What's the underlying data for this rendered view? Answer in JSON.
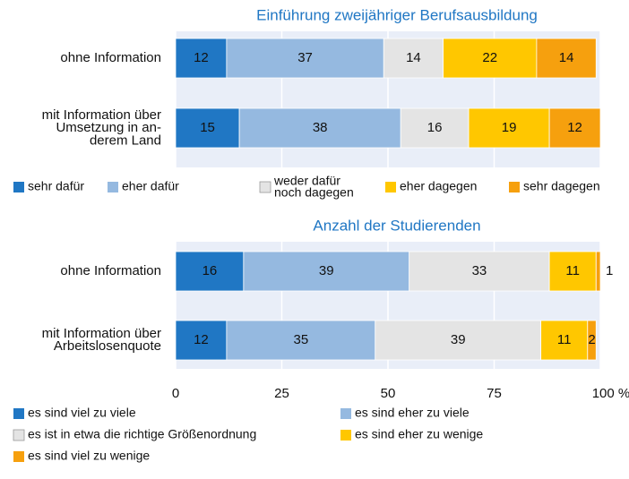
{
  "chart_data": [
    {
      "type": "bar",
      "orientation": "horizontal",
      "stacked": true,
      "title": "Einführung zweijähriger Berufsausbildung",
      "categories": [
        "ohne Information",
        "mit Information über\nUmsetzung in an-\nderem Land"
      ],
      "xlim": [
        0,
        100
      ],
      "series": [
        {
          "name": "sehr dafür",
          "color": "#2077c4",
          "label_color": "#ffffff",
          "values": [
            12,
            15
          ]
        },
        {
          "name": "eher dafür",
          "color": "#95b9e0",
          "label_color": "#2a78c6",
          "values": [
            37,
            38
          ]
        },
        {
          "name": "weder dafür\nnoch dagegen",
          "color": "#e4e4e4",
          "label_color": "#6a6a6a",
          "values": [
            14,
            16
          ]
        },
        {
          "name": "eher dagegen",
          "color": "#ffc700",
          "label_color": "#f29a00",
          "values": [
            22,
            19
          ]
        },
        {
          "name": "sehr dagegen",
          "color": "#f6a00e",
          "label_color": "#b8201a",
          "values": [
            14,
            12
          ]
        }
      ]
    },
    {
      "type": "bar",
      "orientation": "horizontal",
      "stacked": true,
      "title": "Anzahl der Studierenden",
      "categories": [
        "ohne Information",
        "mit Information über\nArbeitslosenquote"
      ],
      "xlim": [
        0,
        100
      ],
      "xticks": [
        0,
        25,
        50,
        75,
        {
          "value": 100,
          "label": "100 %"
        }
      ],
      "grid": true,
      "series": [
        {
          "name": "es sind viel zu viele",
          "color": "#2077c4",
          "label_color": "#ffffff",
          "values": [
            16,
            12
          ]
        },
        {
          "name": "es sind eher zu viele",
          "color": "#95b9e0",
          "label_color": "#2a78c6",
          "values": [
            39,
            35
          ]
        },
        {
          "name": "es ist in etwa die richtige Größenordnung",
          "color": "#e4e4e4",
          "label_color": "#6a6a6a",
          "values": [
            33,
            39
          ]
        },
        {
          "name": "es sind eher zu wenige",
          "color": "#ffc700",
          "label_color": "#f29a00",
          "values": [
            11,
            11
          ]
        },
        {
          "name": "es sind viel zu wenige",
          "color": "#f6a00e",
          "label_color": "#d42a1e",
          "values": [
            1,
            2
          ]
        }
      ]
    }
  ]
}
